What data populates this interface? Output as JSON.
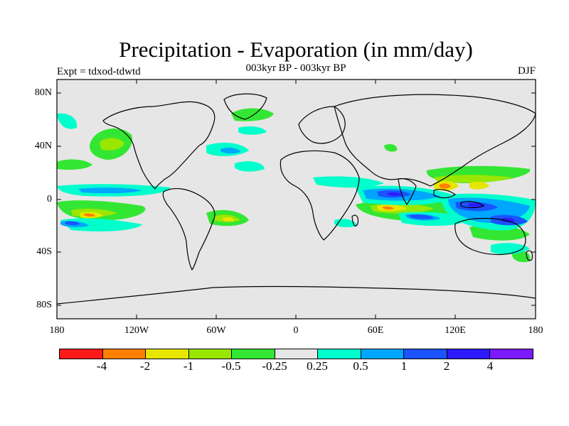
{
  "title": "Precipitation - Evaporation (in mm/day)",
  "subtitle": "003kyr BP - 003kyr BP",
  "experiment": "Expt = tdxod-tdwtd",
  "season": "DJF",
  "lat_labels": [
    "80N",
    "40N",
    "0",
    "40S",
    "80S"
  ],
  "lon_labels": [
    "180",
    "120W",
    "60W",
    "0",
    "60E",
    "120E",
    "180"
  ],
  "colorbar": {
    "colors": [
      "#ff1a1a",
      "#ff7f00",
      "#e6e600",
      "#99e600",
      "#33e633",
      "#e6e6e6",
      "#00ffcc",
      "#00a6ff",
      "#1a53ff",
      "#2e1aff",
      "#7a1aff"
    ],
    "labels": [
      "-4",
      "-2",
      "-1",
      "-0.5",
      "-0.25",
      "0.25",
      "0.5",
      "1",
      "2",
      "4"
    ]
  },
  "map": {
    "background": "#e6e6e6",
    "coast_color": "#000000"
  }
}
